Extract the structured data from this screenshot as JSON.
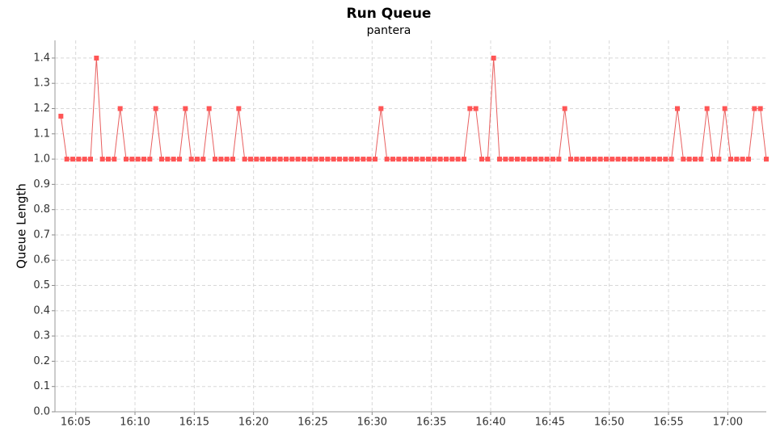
{
  "chart_data": {
    "type": "line",
    "title": "Run Queue",
    "subtitle": "pantera",
    "ylabel": "Queue Length",
    "x": [
      "16:03:45",
      "16:04:15",
      "16:04:45",
      "16:05:15",
      "16:05:45",
      "16:06:15",
      "16:06:45",
      "16:07:15",
      "16:07:45",
      "16:08:15",
      "16:08:45",
      "16:09:15",
      "16:09:45",
      "16:10:15",
      "16:10:45",
      "16:11:15",
      "16:11:45",
      "16:12:15",
      "16:12:45",
      "16:13:15",
      "16:13:45",
      "16:14:15",
      "16:14:45",
      "16:15:15",
      "16:15:45",
      "16:16:15",
      "16:16:45",
      "16:17:15",
      "16:17:45",
      "16:18:15",
      "16:18:45",
      "16:19:15",
      "16:19:45",
      "16:20:15",
      "16:20:45",
      "16:21:15",
      "16:21:45",
      "16:22:15",
      "16:22:45",
      "16:23:15",
      "16:23:45",
      "16:24:15",
      "16:24:45",
      "16:25:15",
      "16:25:45",
      "16:26:15",
      "16:26:45",
      "16:27:15",
      "16:27:45",
      "16:28:15",
      "16:28:45",
      "16:29:15",
      "16:29:45",
      "16:30:15",
      "16:30:45",
      "16:31:15",
      "16:31:45",
      "16:32:15",
      "16:32:45",
      "16:33:15",
      "16:33:45",
      "16:34:15",
      "16:34:45",
      "16:35:15",
      "16:35:45",
      "16:36:15",
      "16:36:45",
      "16:37:15",
      "16:37:45",
      "16:38:15",
      "16:38:45",
      "16:39:15",
      "16:39:45",
      "16:40:15",
      "16:40:45",
      "16:41:15",
      "16:41:45",
      "16:42:15",
      "16:42:45",
      "16:43:15",
      "16:43:45",
      "16:44:15",
      "16:44:45",
      "16:45:15",
      "16:45:45",
      "16:46:15",
      "16:46:45",
      "16:47:15",
      "16:47:45",
      "16:48:15",
      "16:48:45",
      "16:49:15",
      "16:49:45",
      "16:50:15",
      "16:50:45",
      "16:51:15",
      "16:51:45",
      "16:52:15",
      "16:52:45",
      "16:53:15",
      "16:53:45",
      "16:54:15",
      "16:54:45",
      "16:55:15",
      "16:55:45",
      "16:56:15",
      "16:56:45",
      "16:57:15",
      "16:57:45",
      "16:58:15",
      "16:58:45",
      "16:59:15",
      "16:59:45",
      "17:00:15",
      "17:00:45",
      "17:01:15",
      "17:01:45",
      "17:02:15",
      "17:02:45",
      "17:03:15"
    ],
    "series": [
      {
        "name": "Run Queue",
        "color": "#ff5555",
        "line_color": "#e86060",
        "values": [
          1.17,
          1,
          1,
          1,
          1,
          1,
          1.4,
          1,
          1,
          1,
          1.2,
          1,
          1,
          1,
          1,
          1,
          1.2,
          1,
          1,
          1,
          1,
          1.2,
          1,
          1,
          1,
          1.2,
          1,
          1,
          1,
          1,
          1.2,
          1,
          1,
          1,
          1,
          1,
          1,
          1,
          1,
          1,
          1,
          1,
          1,
          1,
          1,
          1,
          1,
          1,
          1,
          1,
          1,
          1,
          1,
          1,
          1.2,
          1,
          1,
          1,
          1,
          1,
          1,
          1,
          1,
          1,
          1,
          1,
          1,
          1,
          1,
          1.2,
          1.2,
          1,
          1,
          1.4,
          1,
          1,
          1,
          1,
          1,
          1,
          1,
          1,
          1,
          1,
          1,
          1.2,
          1,
          1,
          1,
          1,
          1,
          1,
          1,
          1,
          1,
          1,
          1,
          1,
          1,
          1,
          1,
          1,
          1,
          1,
          1.2,
          1,
          1,
          1,
          1,
          1.2,
          1,
          1,
          1.2,
          1,
          1,
          1,
          1,
          1.2,
          1.2,
          1
        ]
      }
    ],
    "xlim": [
      "16:03:15",
      "17:03:15"
    ],
    "xticks": [
      "16:05",
      "16:10",
      "16:15",
      "16:20",
      "16:25",
      "16:30",
      "16:35",
      "16:40",
      "16:45",
      "16:50",
      "16:55",
      "17:00"
    ],
    "ylim": [
      0,
      1.47
    ],
    "yticks": [
      {
        "value": 0,
        "label": "0.0"
      },
      0.1,
      0.2,
      0.3,
      0.4,
      0.5,
      0.6,
      0.7,
      0.8,
      0.9,
      {
        "value": 1,
        "label": "1.0"
      },
      1.1,
      1.2,
      1.3,
      1.4
    ],
    "grid": true
  }
}
